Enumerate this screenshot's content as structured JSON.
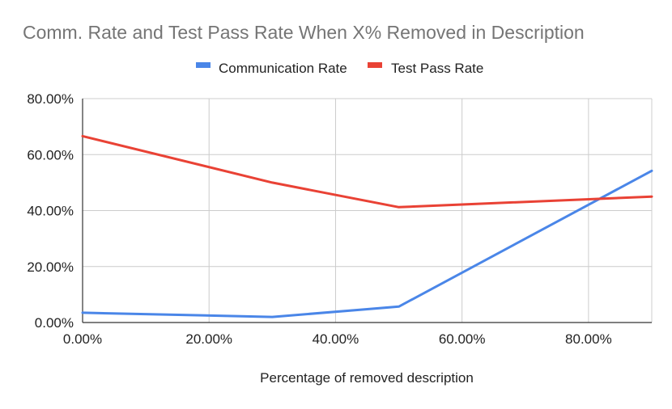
{
  "chart_data": {
    "type": "line",
    "title": "Comm. Rate and Test Pass Rate When X% Removed in Description",
    "xlabel": "Percentage of removed description",
    "ylabel": "",
    "x_ticks": [
      "0.00%",
      "20.00%",
      "40.00%",
      "60.00%",
      "80.00%"
    ],
    "y_ticks": [
      "0.00%",
      "20.00%",
      "40.00%",
      "60.00%",
      "80.00%"
    ],
    "xlim": [
      0,
      0.9
    ],
    "ylim": [
      0,
      0.8
    ],
    "grid": true,
    "legend_position": "top",
    "series": [
      {
        "name": "Communication Rate",
        "color": "#4a86e8",
        "x": [
          0,
          0.3,
          0.5,
          0.9
        ],
        "values": [
          0.035,
          0.02,
          0.057,
          0.542
        ]
      },
      {
        "name": "Test Pass Rate",
        "color": "#e94235",
        "x": [
          0,
          0.3,
          0.5,
          0.9
        ],
        "values": [
          0.666,
          0.5,
          0.412,
          0.45
        ]
      }
    ]
  }
}
